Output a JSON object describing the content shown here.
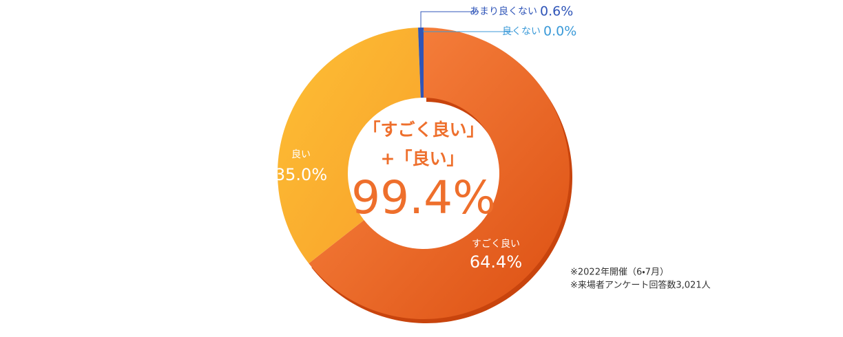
{
  "chart_data": {
    "type": "pie",
    "donut": true,
    "categories": [
      "すごく良い",
      "良い",
      "あまり良くない",
      "良くない"
    ],
    "values": [
      64.4,
      35.0,
      0.6,
      0.0
    ],
    "value_labels": [
      "64.4%",
      "35.0%",
      "0.6%",
      "0.0%"
    ],
    "colors": [
      "#ee6f2c",
      "#fbb232",
      "#2f55b8",
      "#3b9ad8"
    ],
    "center_text": [
      "「すごく良い」",
      "+「良い」"
    ],
    "center_value": {
      "value": 99.4,
      "label": "99.4%"
    },
    "notes": [
      "※2022年開催（6・7月）",
      "※来場者アンケート回答数3,021人"
    ]
  }
}
